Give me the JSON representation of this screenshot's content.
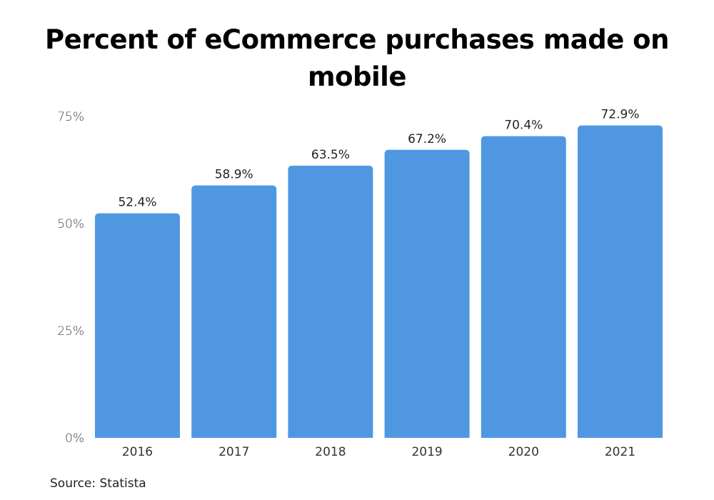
{
  "chart_data": {
    "type": "bar",
    "title": "Percent of eCommerce purchases made on mobile",
    "categories": [
      "2016",
      "2017",
      "2018",
      "2019",
      "2020",
      "2021"
    ],
    "values": [
      52.4,
      58.9,
      63.5,
      67.2,
      70.4,
      72.9
    ],
    "data_labels": [
      "52.4%",
      "58.9%",
      "63.5%",
      "67.2%",
      "70.4%",
      "72.9%"
    ],
    "yticks": [
      0,
      25,
      50,
      75
    ],
    "ytick_labels": [
      "0%",
      "25%",
      "50%",
      "75%"
    ],
    "ylim": [
      0,
      75
    ],
    "xlabel": "",
    "ylabel": "",
    "grid": false,
    "bar_color": "#4f98e1",
    "source": "Source: Statista"
  }
}
